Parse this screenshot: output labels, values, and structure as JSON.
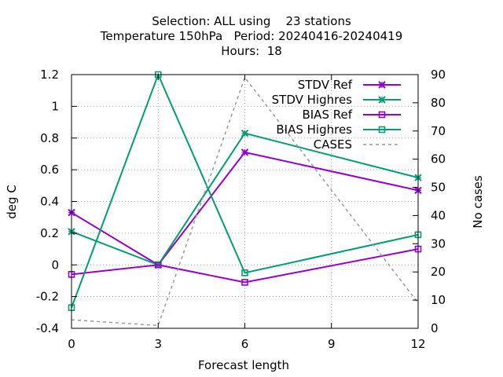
{
  "chart_data": {
    "type": "line",
    "title_lines": [
      "Selection: ALL using    23 stations",
      "Temperature 150hPa   Period: 20240416-20240419",
      "Hours:  18"
    ],
    "xlabel": "Forecast length",
    "ylabel": "deg C",
    "y2label": "No cases",
    "x_ticks": [
      0,
      3,
      6,
      9,
      12
    ],
    "xlim": [
      0,
      12
    ],
    "y_ticks": [
      "-0.4",
      "-0.2",
      "0",
      "0.2",
      "0.4",
      "0.6",
      "0.8",
      "1",
      "1.2"
    ],
    "ylim": [
      -0.4,
      1.2
    ],
    "y2_ticks": [
      "0",
      "10",
      "20",
      "30",
      "40",
      "50",
      "60",
      "70",
      "80",
      "90"
    ],
    "y2lim": [
      0,
      90
    ],
    "grid": true,
    "legend_position": "top-right",
    "x": [
      0,
      3,
      6,
      12
    ],
    "series": [
      {
        "name": "STDV Ref",
        "axis": "y1",
        "color": "#9400d3",
        "marker": "x",
        "dash": false,
        "values": [
          0.33,
          0.0,
          0.71,
          0.47
        ]
      },
      {
        "name": "STDV Highres",
        "axis": "y1",
        "color": "#009e73",
        "marker": "x",
        "dash": false,
        "values": [
          0.21,
          0.0,
          0.83,
          0.55
        ]
      },
      {
        "name": "BIAS Ref",
        "axis": "y1",
        "color": "#9400d3",
        "marker": "square",
        "dash": false,
        "values": [
          -0.06,
          0.0,
          -0.11,
          0.1
        ]
      },
      {
        "name": "BIAS Highres",
        "axis": "y1",
        "color": "#009e73",
        "marker": "square",
        "dash": false,
        "values": [
          -0.27,
          1.2,
          -0.05,
          0.19
        ]
      },
      {
        "name": "CASES",
        "axis": "y2",
        "color": "#999999",
        "marker": "none",
        "dash": true,
        "values": [
          3,
          1,
          89,
          9
        ]
      }
    ]
  }
}
